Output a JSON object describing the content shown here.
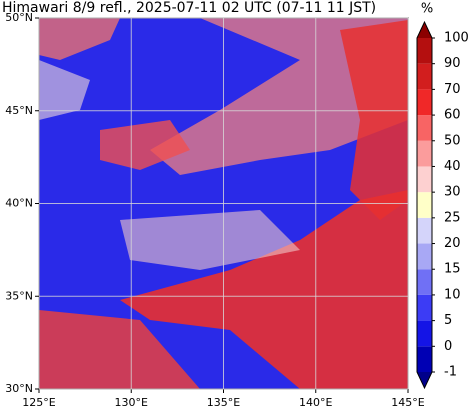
{
  "title": "Himawari 8/9 refl., 2025-07-11 02 UTC (07-11 11 JST)",
  "map": {
    "xlim": [
      125,
      145
    ],
    "ylim": [
      30,
      50
    ],
    "xticks": [
      {
        "value": 125,
        "label": "125°E"
      },
      {
        "value": 130,
        "label": "130°E"
      },
      {
        "value": 135,
        "label": "135°E"
      },
      {
        "value": 140,
        "label": "140°E"
      },
      {
        "value": 145,
        "label": "145°E"
      }
    ],
    "yticks": [
      {
        "value": 30,
        "label": "30°N"
      },
      {
        "value": 35,
        "label": "35°N"
      },
      {
        "value": 40,
        "label": "40°N"
      },
      {
        "value": 45,
        "label": "45°N"
      },
      {
        "value": 50,
        "label": "50°N"
      }
    ],
    "grid": true
  },
  "colorbar": {
    "unit": "%",
    "levels": [
      -1,
      0,
      5,
      10,
      15,
      20,
      25,
      30,
      40,
      50,
      60,
      70,
      90,
      100
    ],
    "colors": [
      "#00008b",
      "#0000b4",
      "#1414e6",
      "#3c3cf5",
      "#7070f5",
      "#a8a8f5",
      "#d4d4fa",
      "#ffffc8",
      "#fdd0d0",
      "#fb9c9c",
      "#f86464",
      "#f02828",
      "#d21e1e",
      "#b40f0f",
      "#8b0000"
    ]
  }
}
